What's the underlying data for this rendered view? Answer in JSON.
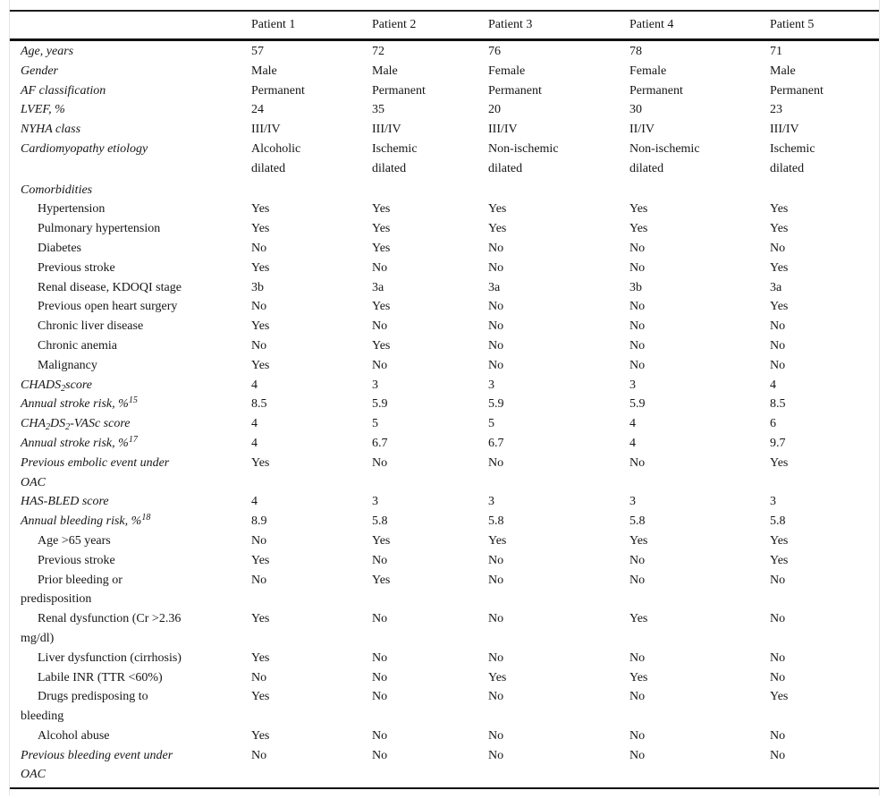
{
  "meta": {
    "text_color": "#161616",
    "rule_color": "#111111",
    "frame_color": "#e4e4e4",
    "background": "#ffffff"
  },
  "table": {
    "columns": [
      "",
      "Patient 1",
      "Patient 2",
      "Patient 3",
      "Patient 4",
      "Patient 5"
    ],
    "rows": [
      {
        "label": "Age, years",
        "style": "main",
        "values": [
          "57",
          "72",
          "76",
          "78",
          "71"
        ]
      },
      {
        "label": "Gender",
        "style": "main",
        "values": [
          "Male",
          "Male",
          "Female",
          "Female",
          "Male"
        ]
      },
      {
        "label": "AF classification",
        "style": "main",
        "values": [
          "Permanent",
          "Permanent",
          "Permanent",
          "Permanent",
          "Permanent"
        ]
      },
      {
        "label": "LVEF, %",
        "style": "main",
        "values": [
          "24",
          "35",
          "20",
          "30",
          "23"
        ]
      },
      {
        "label": "NYHA class",
        "style": "main",
        "values": [
          "III/IV",
          "III/IV",
          "III/IV",
          "II/IV",
          "III/IV"
        ]
      },
      {
        "label": "Cardiomyopathy etiology",
        "style": "main",
        "values": [
          "Alcoholic\ndilated",
          "Ischemic\ndilated",
          "Non-ischemic\ndilated",
          "Non-ischemic\ndilated",
          "Ischemic\ndilated"
        ]
      },
      {
        "label": "Comorbidities",
        "style": "section",
        "values": [
          "",
          "",
          "",
          "",
          ""
        ]
      },
      {
        "label": "Hypertension",
        "style": "sub",
        "values": [
          "Yes",
          "Yes",
          "Yes",
          "Yes",
          "Yes"
        ]
      },
      {
        "label": "Pulmonary hypertension",
        "style": "sub",
        "values": [
          "Yes",
          "Yes",
          "Yes",
          "Yes",
          "Yes"
        ]
      },
      {
        "label": "Diabetes",
        "style": "sub",
        "values": [
          "No",
          "Yes",
          "No",
          "No",
          "No"
        ]
      },
      {
        "label": "Previous stroke",
        "style": "sub",
        "values": [
          "Yes",
          "No",
          "No",
          "No",
          "Yes"
        ]
      },
      {
        "label": "Renal disease, KDOQI stage",
        "style": "sub",
        "values": [
          "3b",
          "3a",
          "3a",
          "3b",
          "3a"
        ]
      },
      {
        "label": "Previous open heart surgery",
        "style": "sub",
        "values": [
          "No",
          "Yes",
          "No",
          "No",
          "Yes"
        ]
      },
      {
        "label": "Chronic liver disease",
        "style": "sub",
        "values": [
          "Yes",
          "No",
          "No",
          "No",
          "No"
        ]
      },
      {
        "label": "Chronic anemia",
        "style": "sub",
        "values": [
          "No",
          "Yes",
          "No",
          "No",
          "No"
        ]
      },
      {
        "label": "Malignancy",
        "style": "sub",
        "values": [
          "Yes",
          "No",
          "No",
          "No",
          "No"
        ]
      },
      {
        "label": "CHADS~2~score",
        "style": "main",
        "values": [
          "4",
          "3",
          "3",
          "3",
          "4"
        ]
      },
      {
        "label": "Annual stroke risk, %^15^",
        "style": "main",
        "values": [
          "8.5",
          "5.9",
          "5.9",
          "5.9",
          "8.5"
        ]
      },
      {
        "label": "CHA~2~DS~2~-VASc score",
        "style": "main",
        "values": [
          "4",
          "5",
          "5",
          "4",
          "6"
        ]
      },
      {
        "label": "Annual stroke risk, %^17^",
        "style": "main",
        "values": [
          "4",
          "6.7",
          "6.7",
          "4",
          "9.7"
        ]
      },
      {
        "label": "Previous embolic event under\nOAC",
        "style": "main",
        "values": [
          "Yes",
          "No",
          "No",
          "No",
          "Yes"
        ]
      },
      {
        "label": "HAS-BLED score",
        "style": "main",
        "values": [
          "4",
          "3",
          "3",
          "3",
          "3"
        ]
      },
      {
        "label": "Annual bleeding risk, %^18^",
        "style": "main",
        "values": [
          "8.9",
          "5.8",
          "5.8",
          "5.8",
          "5.8"
        ]
      },
      {
        "label": "Age >65 years",
        "style": "sub",
        "values": [
          "No",
          "Yes",
          "Yes",
          "Yes",
          "Yes"
        ]
      },
      {
        "label": "Previous stroke",
        "style": "sub",
        "values": [
          "Yes",
          "No",
          "No",
          "No",
          "Yes"
        ]
      },
      {
        "label": "Prior bleeding or\npredisposition",
        "style": "sub",
        "values": [
          "No",
          "Yes",
          "No",
          "No",
          "No"
        ]
      },
      {
        "label": "Renal dysfunction (Cr >2.36\nmg/dl)",
        "style": "sub",
        "values": [
          "Yes",
          "No",
          "No",
          "Yes",
          "No"
        ]
      },
      {
        "label": "Liver dysfunction (cirrhosis)",
        "style": "sub",
        "values": [
          "Yes",
          "No",
          "No",
          "No",
          "No"
        ]
      },
      {
        "label": "Labile INR (TTR <60%)",
        "style": "sub",
        "values": [
          "No",
          "No",
          "Yes",
          "Yes",
          "No"
        ]
      },
      {
        "label": "Drugs predisposing to\nbleeding",
        "style": "sub",
        "values": [
          "Yes",
          "No",
          "No",
          "No",
          "Yes"
        ]
      },
      {
        "label": "Alcohol abuse",
        "style": "sub",
        "values": [
          "Yes",
          "No",
          "No",
          "No",
          "No"
        ]
      },
      {
        "label": "Previous bleeding event under\nOAC",
        "style": "main",
        "values": [
          "No",
          "No",
          "No",
          "No",
          "No"
        ]
      }
    ]
  }
}
